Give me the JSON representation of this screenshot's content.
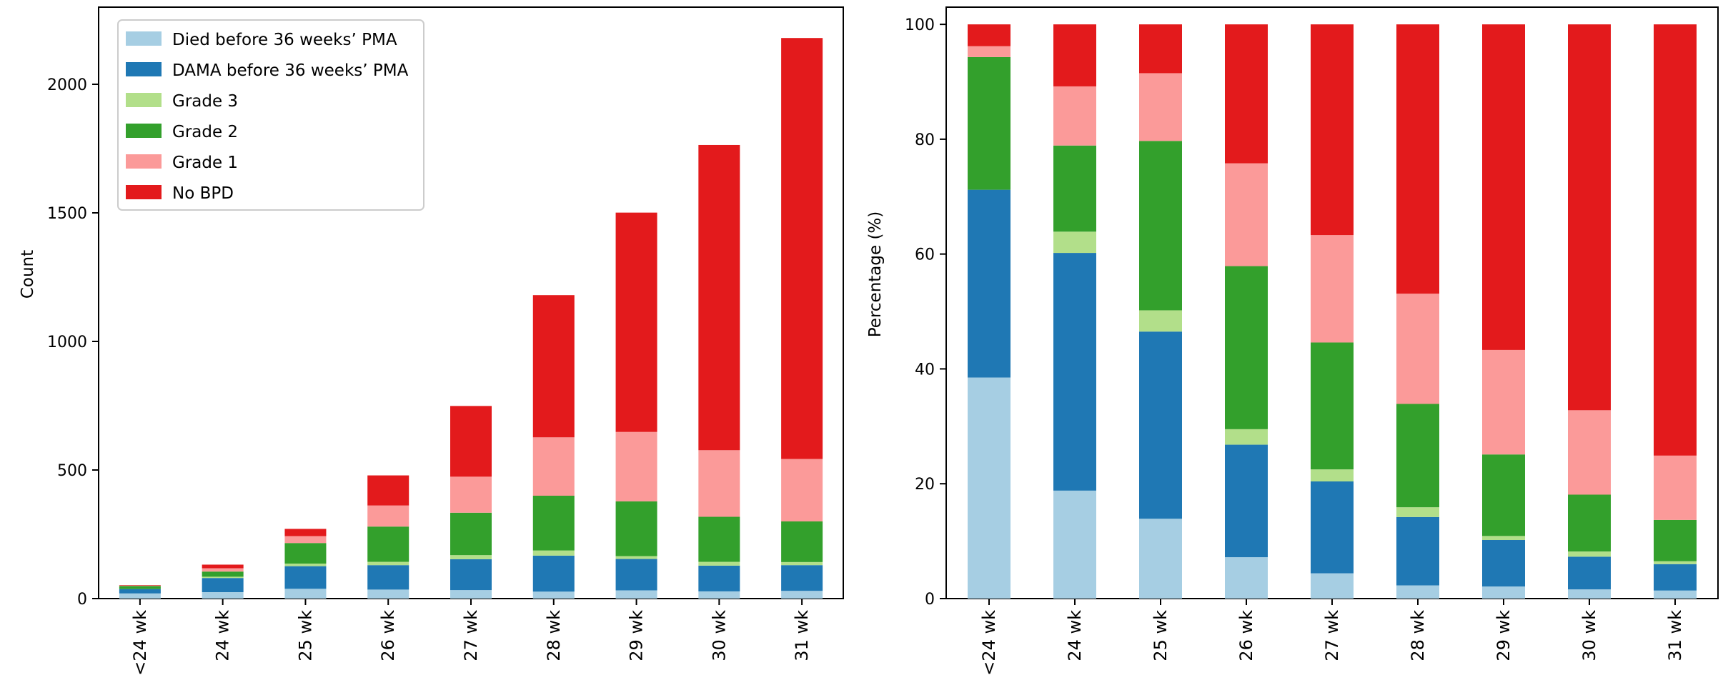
{
  "chart_data": [
    {
      "type": "bar",
      "stacked": true,
      "title": "",
      "xlabel": "",
      "ylabel": "Count",
      "ylim": [
        0,
        2300
      ],
      "yticks": [
        0,
        500,
        1000,
        1500,
        2000
      ],
      "grid": false,
      "legend_position": "upper-left",
      "categories": [
        "<24 wk",
        "24 wk",
        "25 wk",
        "26 wk",
        "27 wk",
        "28 wk",
        "29 wk",
        "30 wk",
        "31 wk"
      ],
      "series": [
        {
          "name": "Died before 36 weeks’ PMA",
          "color": "#a6cee3",
          "values": [
            20,
            25,
            38,
            35,
            33,
            27,
            32,
            28,
            30
          ]
        },
        {
          "name": "DAMA before 36 weeks’ PMA",
          "color": "#1f78b4",
          "values": [
            17,
            55,
            88,
            95,
            120,
            140,
            122,
            100,
            100
          ]
        },
        {
          "name": "Grade 3",
          "color": "#b2df8a",
          "values": [
            0,
            5,
            10,
            13,
            16,
            20,
            11,
            15,
            12
          ]
        },
        {
          "name": "Grade 2",
          "color": "#33a02c",
          "values": [
            12,
            20,
            80,
            137,
            165,
            213,
            213,
            175,
            158
          ]
        },
        {
          "name": "Grade 1",
          "color": "#fb9a99",
          "values": [
            1,
            13,
            27,
            82,
            140,
            227,
            270,
            259,
            243
          ]
        },
        {
          "name": "No BPD",
          "color": "#e31a1c",
          "values": [
            2,
            14,
            28,
            117,
            275,
            553,
            853,
            1187,
            1637
          ]
        }
      ]
    },
    {
      "type": "bar",
      "stacked": true,
      "title": "",
      "xlabel": "",
      "ylabel": "Percentage (%)",
      "ylim": [
        0,
        103
      ],
      "yticks": [
        0,
        20,
        40,
        60,
        80,
        100
      ],
      "grid": false,
      "categories": [
        "<24 wk",
        "24 wk",
        "25 wk",
        "26 wk",
        "27 wk",
        "28 wk",
        "29 wk",
        "30 wk",
        "31 wk"
      ],
      "series": [
        {
          "name": "Died before 36 weeks’ PMA",
          "color": "#a6cee3",
          "values": [
            38.5,
            18.8,
            13.9,
            7.2,
            4.4,
            2.3,
            2.1,
            1.6,
            1.4
          ]
        },
        {
          "name": "DAMA before 36 weeks’ PMA",
          "color": "#1f78b4",
          "values": [
            32.7,
            41.4,
            32.6,
            19.6,
            16.0,
            11.9,
            8.1,
            5.7,
            4.6
          ]
        },
        {
          "name": "Grade 3",
          "color": "#b2df8a",
          "values": [
            0,
            3.7,
            3.7,
            2.7,
            2.1,
            1.7,
            0.7,
            0.9,
            0.5
          ]
        },
        {
          "name": "Grade 2",
          "color": "#33a02c",
          "values": [
            23.1,
            15.0,
            29.5,
            28.4,
            22.1,
            18.0,
            14.2,
            9.9,
            7.2
          ]
        },
        {
          "name": "Grade 1",
          "color": "#fb9a99",
          "values": [
            1.9,
            10.3,
            11.8,
            17.9,
            18.7,
            19.2,
            18.2,
            14.7,
            11.2
          ]
        },
        {
          "name": "No BPD",
          "color": "#e31a1c",
          "values": [
            3.8,
            10.8,
            8.5,
            24.2,
            36.7,
            46.9,
            56.7,
            67.2,
            75.1
          ]
        }
      ]
    }
  ]
}
